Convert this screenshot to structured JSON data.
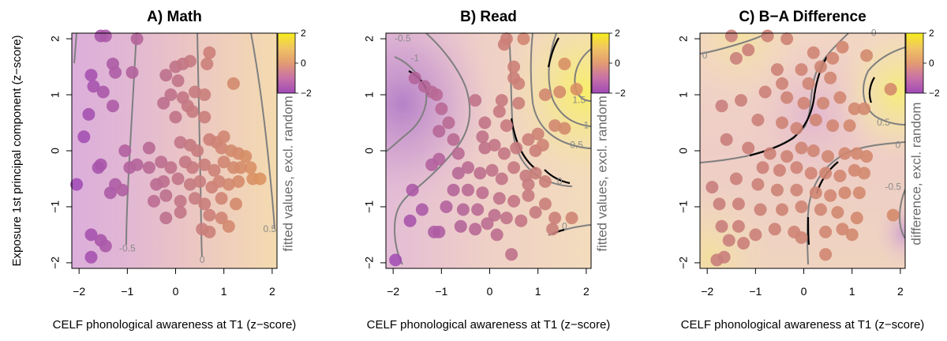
{
  "figure": {
    "ylabel": "Exposure 1st principal component (z−score)"
  },
  "colors": {
    "purple": "#a04cb8",
    "orange": "#e09a5a",
    "yellow": "#f2e316",
    "contour": "#7f7f7f",
    "boundary": "#000000"
  },
  "chart_data": [
    {
      "type": "scatter",
      "panel": "math",
      "title": "A) Math",
      "xlabel": "CELF phonological awareness at T1 (z−score)",
      "colorbar_label": "fitted values, excl. random",
      "colorbar_ticks": [
        2,
        0,
        -2
      ],
      "xticks": [
        -2,
        -1,
        0,
        1,
        2
      ],
      "yticks": [
        2,
        1,
        0,
        -1,
        -2
      ],
      "xlim": [
        -2.15,
        2.1
      ],
      "ylim": [
        -2.1,
        2.1
      ],
      "contour_labels": [
        {
          "label": "-0.5",
          "x": -1.0,
          "y": -1.8
        },
        {
          "label": "0",
          "x": 0.55,
          "y": -2.0
        },
        {
          "label": "0.5",
          "x": 1.95,
          "y": -1.45
        }
      ],
      "points": [
        [
          -1.55,
          2.05
        ],
        [
          -1.45,
          2.05
        ],
        [
          -0.8,
          2.0
        ],
        [
          -1.3,
          1.55
        ],
        [
          -1.25,
          1.4
        ],
        [
          -0.9,
          1.4
        ],
        [
          -1.75,
          1.35
        ],
        [
          -1.7,
          1.15
        ],
        [
          -1.5,
          1.05
        ],
        [
          -1.3,
          0.8
        ],
        [
          -1.8,
          0.65
        ],
        [
          -1.9,
          0.25
        ],
        [
          -1.05,
          0.0
        ],
        [
          -1.55,
          -0.25
        ],
        [
          -1.6,
          -0.3
        ],
        [
          -2.05,
          -0.6
        ],
        [
          -1.25,
          -0.6
        ],
        [
          -1.35,
          -0.75
        ],
        [
          -1.75,
          -1.5
        ],
        [
          -1.55,
          -1.6
        ],
        [
          -1.45,
          -1.7
        ],
        [
          -1.75,
          -1.9
        ],
        [
          -0.95,
          -0.3
        ],
        [
          -0.8,
          -0.25
        ],
        [
          -1.1,
          -0.7
        ],
        [
          -0.55,
          -0.3
        ],
        [
          -0.2,
          1.35
        ],
        [
          0.0,
          1.5
        ],
        [
          0.15,
          1.55
        ],
        [
          0.3,
          1.6
        ],
        [
          0.7,
          1.75
        ],
        [
          0.65,
          1.55
        ],
        [
          0.05,
          1.25
        ],
        [
          -0.1,
          1.0
        ],
        [
          0.15,
          0.95
        ],
        [
          0.4,
          1.05
        ],
        [
          0.6,
          1.0
        ],
        [
          1.2,
          1.2
        ],
        [
          -0.25,
          0.85
        ],
        [
          0.25,
          0.8
        ],
        [
          0.35,
          0.7
        ],
        [
          0.0,
          0.6
        ],
        [
          0.6,
          0.6
        ],
        [
          -0.55,
          0.05
        ],
        [
          0.1,
          0.15
        ],
        [
          0.3,
          0.1
        ],
        [
          0.45,
          0.0
        ],
        [
          0.7,
          0.2
        ],
        [
          0.85,
          0.15
        ],
        [
          1.0,
          0.25
        ],
        [
          0.95,
          0.05
        ],
        [
          1.15,
          0.0
        ],
        [
          1.3,
          -0.05
        ],
        [
          1.45,
          -0.1
        ],
        [
          -0.3,
          -0.2
        ],
        [
          -0.1,
          -0.3
        ],
        [
          0.2,
          -0.2
        ],
        [
          0.35,
          -0.3
        ],
        [
          0.6,
          -0.25
        ],
        [
          0.8,
          -0.35
        ],
        [
          1.0,
          -0.2
        ],
        [
          1.2,
          -0.3
        ],
        [
          1.55,
          -0.3
        ],
        [
          -0.25,
          -0.55
        ],
        [
          0.05,
          -0.5
        ],
        [
          0.3,
          -0.6
        ],
        [
          0.5,
          -0.55
        ],
        [
          0.75,
          -0.65
        ],
        [
          0.9,
          -0.55
        ],
        [
          1.1,
          -0.6
        ],
        [
          1.3,
          -0.55
        ],
        [
          1.6,
          -0.5
        ],
        [
          -0.45,
          -0.9
        ],
        [
          -0.2,
          -0.8
        ],
        [
          0.1,
          -0.9
        ],
        [
          0.4,
          -0.85
        ],
        [
          0.6,
          -0.95
        ],
        [
          0.95,
          -0.85
        ],
        [
          1.25,
          -0.95
        ],
        [
          0.7,
          -1.15
        ],
        [
          0.95,
          -1.2
        ],
        [
          1.1,
          -1.35
        ],
        [
          0.55,
          -1.4
        ],
        [
          0.7,
          -1.45
        ],
        [
          0.1,
          -1.1
        ],
        [
          -0.2,
          -1.2
        ],
        [
          -0.4,
          -0.6
        ],
        [
          1.35,
          -0.3
        ],
        [
          1.75,
          -0.5
        ]
      ]
    },
    {
      "type": "scatter",
      "panel": "read",
      "title": "B) Read",
      "xlabel": "CELF phonological awareness at T1 (z−score)",
      "colorbar_label": "fitted values, excl. random",
      "colorbar_ticks": [
        2,
        0,
        -2
      ],
      "xticks": [
        -2,
        -1,
        0,
        1,
        2
      ],
      "yticks": [
        2,
        1,
        0,
        -1,
        -2
      ],
      "xlim": [
        -2.15,
        2.1
      ],
      "ylim": [
        -2.1,
        2.1
      ],
      "contour_labels": [
        {
          "label": "-0.5",
          "x": -1.8,
          "y": 1.95
        },
        {
          "label": "-1",
          "x": -1.55,
          "y": 1.6
        },
        {
          "label": "0",
          "x": 1.45,
          "y": -0.6
        },
        {
          "label": "0",
          "x": 1.55,
          "y": -1.4
        },
        {
          "label": "0.5",
          "x": 1.8,
          "y": 0.05
        },
        {
          "label": "1",
          "x": 2.0,
          "y": 0.4
        },
        {
          "label": "1.5",
          "x": 1.85,
          "y": 0.85
        }
      ],
      "points": [
        [
          -1.55,
          1.3
        ],
        [
          -1.35,
          1.15
        ],
        [
          -1.2,
          1.05
        ],
        [
          -1.1,
          1.0
        ],
        [
          -1.0,
          0.75
        ],
        [
          -0.85,
          0.5
        ],
        [
          -1.05,
          0.35
        ],
        [
          -0.75,
          0.2
        ],
        [
          -1.05,
          -0.15
        ],
        [
          -1.2,
          -0.25
        ],
        [
          -0.65,
          -0.05
        ],
        [
          -1.6,
          -0.7
        ],
        [
          -1.4,
          -1.05
        ],
        [
          -1.65,
          -1.25
        ],
        [
          -1.95,
          -1.95
        ],
        [
          -0.65,
          -0.4
        ],
        [
          -0.3,
          0.9
        ],
        [
          0.25,
          0.9
        ],
        [
          0.2,
          0.7
        ],
        [
          0.35,
          0.45
        ],
        [
          0.6,
          0.85
        ],
        [
          0.6,
          1.2
        ],
        [
          0.5,
          1.5
        ],
        [
          0.3,
          1.9
        ],
        [
          0.35,
          2.0
        ],
        [
          0.7,
          2.0
        ],
        [
          0.5,
          1.3
        ],
        [
          1.15,
          1.0
        ],
        [
          1.45,
          1.05
        ],
        [
          1.8,
          1.1
        ],
        [
          1.55,
          1.55
        ],
        [
          1.35,
          0.45
        ],
        [
          1.0,
          0.3
        ],
        [
          1.55,
          0.4
        ],
        [
          -0.1,
          0.5
        ],
        [
          -0.15,
          0.25
        ],
        [
          -0.1,
          0.05
        ],
        [
          0.1,
          0.1
        ],
        [
          0.3,
          -0.05
        ],
        [
          0.55,
          0.05
        ],
        [
          0.8,
          0.2
        ],
        [
          0.95,
          0.0
        ],
        [
          1.1,
          0.1
        ],
        [
          -0.45,
          -0.3
        ],
        [
          -0.2,
          -0.4
        ],
        [
          0.05,
          -0.35
        ],
        [
          0.25,
          -0.5
        ],
        [
          0.5,
          -0.3
        ],
        [
          0.75,
          -0.45
        ],
        [
          0.95,
          -0.4
        ],
        [
          1.15,
          -0.55
        ],
        [
          -0.75,
          -0.7
        ],
        [
          -0.45,
          -0.7
        ],
        [
          -0.15,
          -0.75
        ],
        [
          0.2,
          -0.85
        ],
        [
          0.5,
          -0.9
        ],
        [
          0.8,
          -0.8
        ],
        [
          1.15,
          -0.95
        ],
        [
          -0.9,
          -1.0
        ],
        [
          -0.55,
          -1.05
        ],
        [
          -0.25,
          -1.05
        ],
        [
          0.1,
          -1.15
        ],
        [
          0.35,
          -1.2
        ],
        [
          0.65,
          -1.25
        ],
        [
          0.95,
          -1.1
        ],
        [
          1.35,
          -1.2
        ],
        [
          1.7,
          -1.2
        ],
        [
          -1.05,
          -1.45
        ],
        [
          -0.6,
          -1.35
        ],
        [
          -0.3,
          -1.4
        ],
        [
          0.15,
          -1.5
        ],
        [
          -1.15,
          -1.45
        ],
        [
          1.3,
          -1.4
        ],
        [
          0.45,
          -1.85
        ],
        [
          -0.05,
          -1.3
        ],
        [
          0.8,
          -0.6
        ]
      ]
    },
    {
      "type": "scatter",
      "panel": "difference",
      "title": "C) B−A Difference",
      "xlabel": "CELF phonological awareness at T1 (z−score)",
      "colorbar_label": "difference, excl. random",
      "colorbar_ticks": [
        2,
        0,
        -2
      ],
      "xticks": [
        -2,
        -1,
        0,
        1,
        2
      ],
      "yticks": [
        2,
        1,
        0,
        -1,
        -2
      ],
      "xlim": [
        -2.15,
        2.1
      ],
      "ylim": [
        -2.1,
        2.1
      ],
      "contour_labels": [
        {
          "label": "0",
          "x": -2.05,
          "y": 1.65
        },
        {
          "label": "0",
          "x": 1.45,
          "y": 2.05
        },
        {
          "label": "0.5",
          "x": 1.65,
          "y": 0.45
        },
        {
          "label": "0",
          "x": 1.95,
          "y": 0.05
        },
        {
          "label": "-0.5",
          "x": 1.85,
          "y": -0.7
        }
      ],
      "points": [
        [
          -1.5,
          2.05
        ],
        [
          -0.75,
          2.05
        ],
        [
          -0.35,
          2.0
        ],
        [
          -1.4,
          1.65
        ],
        [
          -1.15,
          1.8
        ],
        [
          0.2,
          1.75
        ],
        [
          0.8,
          1.85
        ],
        [
          1.3,
          1.7
        ],
        [
          0.6,
          1.65
        ],
        [
          0.35,
          1.5
        ],
        [
          -0.05,
          1.45
        ],
        [
          -0.55,
          1.45
        ],
        [
          -0.45,
          1.2
        ],
        [
          0.1,
          1.2
        ],
        [
          0.55,
          1.3
        ],
        [
          1.8,
          1.1
        ],
        [
          -0.8,
          1.05
        ],
        [
          -1.7,
          0.8
        ],
        [
          -1.3,
          0.9
        ],
        [
          -0.35,
          0.95
        ],
        [
          0.0,
          0.85
        ],
        [
          0.4,
          0.85
        ],
        [
          0.75,
          0.95
        ],
        [
          1.05,
          0.75
        ],
        [
          1.25,
          0.75
        ],
        [
          -0.95,
          0.55
        ],
        [
          -0.45,
          0.5
        ],
        [
          -0.15,
          0.4
        ],
        [
          0.25,
          0.55
        ],
        [
          0.6,
          0.45
        ],
        [
          0.95,
          0.45
        ],
        [
          -1.6,
          0.2
        ],
        [
          -1.15,
          0.05
        ],
        [
          -0.7,
          -0.05
        ],
        [
          -0.35,
          -0.1
        ],
        [
          -0.05,
          0.05
        ],
        [
          0.2,
          0.0
        ],
        [
          0.5,
          -0.1
        ],
        [
          0.85,
          -0.05
        ],
        [
          1.1,
          -0.05
        ],
        [
          1.3,
          -0.1
        ],
        [
          -0.85,
          -0.3
        ],
        [
          -0.5,
          -0.35
        ],
        [
          -0.15,
          -0.3
        ],
        [
          0.15,
          -0.4
        ],
        [
          0.45,
          -0.4
        ],
        [
          0.75,
          -0.45
        ],
        [
          1.05,
          -0.35
        ],
        [
          1.25,
          -0.4
        ],
        [
          -1.4,
          -0.5
        ],
        [
          -0.95,
          -0.6
        ],
        [
          -0.55,
          -0.7
        ],
        [
          -0.15,
          -0.7
        ],
        [
          0.25,
          -0.75
        ],
        [
          0.55,
          -0.8
        ],
        [
          0.85,
          -0.75
        ],
        [
          1.15,
          -0.75
        ],
        [
          -1.9,
          -0.65
        ],
        [
          -1.75,
          -0.95
        ],
        [
          -1.35,
          -0.95
        ],
        [
          -0.9,
          -1.05
        ],
        [
          -0.45,
          -1.05
        ],
        [
          -0.05,
          -1.0
        ],
        [
          0.35,
          -1.05
        ],
        [
          0.7,
          -1.1
        ],
        [
          1.1,
          -1.2
        ],
        [
          1.85,
          -1.15
        ],
        [
          -1.7,
          -1.35
        ],
        [
          -1.35,
          -1.35
        ],
        [
          -1.55,
          -1.6
        ],
        [
          -1.25,
          -1.65
        ],
        [
          -1.0,
          -1.5
        ],
        [
          -0.6,
          -1.4
        ],
        [
          -0.2,
          -1.45
        ],
        [
          0.45,
          -1.45
        ],
        [
          0.8,
          -1.4
        ],
        [
          1.0,
          -1.5
        ],
        [
          -1.8,
          -1.95
        ],
        [
          -1.65,
          -1.9
        ],
        [
          0.45,
          -1.85
        ],
        [
          -0.05,
          -1.55
        ]
      ]
    }
  ]
}
